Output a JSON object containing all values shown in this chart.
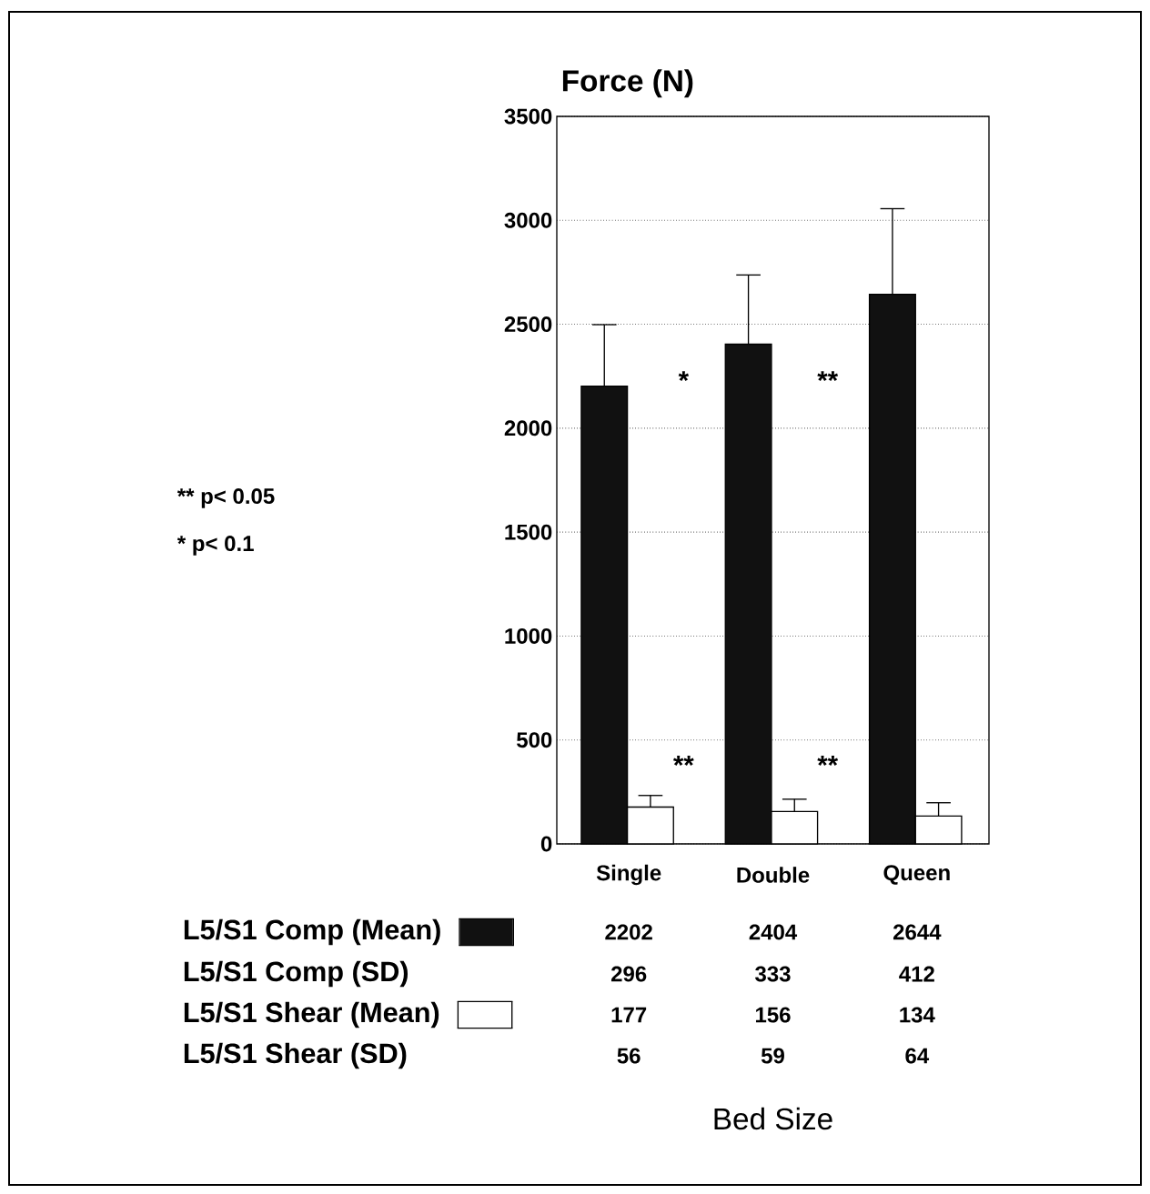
{
  "chart_data": {
    "type": "bar",
    "ylabel": "Force (N)",
    "categories": [
      "Single",
      "Double",
      "Queen"
    ],
    "series": [
      {
        "name": "L5/S1 Comp (Mean)",
        "color": "#111111",
        "values": [
          2202,
          2404,
          2644
        ],
        "errors": [
          296,
          333,
          412
        ]
      },
      {
        "name": "L5/S1 Shear (Mean)",
        "color": "#ffffff",
        "values": [
          177,
          156,
          134
        ],
        "errors": [
          56,
          59,
          64
        ]
      }
    ],
    "ylim": [
      0,
      3500
    ],
    "yticks": [
      0,
      500,
      1000,
      1500,
      2000,
      2500,
      3000,
      3500
    ],
    "grid": "y",
    "data_labels": true,
    "legend": "bottom left",
    "annotations": [
      "** p< 0.05",
      "* p< 0.1",
      "L5/S1 Comp (SD)",
      "L5/S1 Shear (SD)",
      "*",
      "**",
      "**",
      "**",
      "Bed Size",
      "296",
      "333",
      "412",
      "56",
      "59",
      "64"
    ]
  }
}
